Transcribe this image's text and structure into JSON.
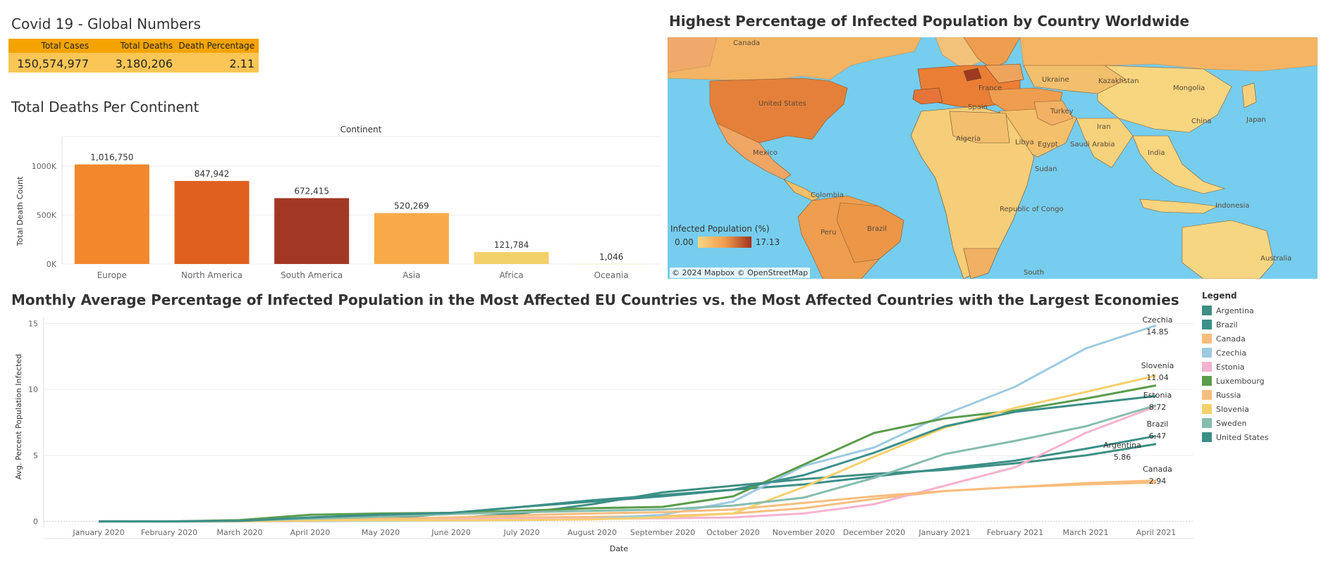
{
  "kpi": {
    "title": "Covid 19 - Global Numbers",
    "headers": [
      "Total Cases",
      "Total Deaths",
      "Death Percentage"
    ],
    "values": [
      "150,574,977",
      "3,180,206",
      "2.11"
    ],
    "colors": {
      "header": "#f5a300",
      "row": "#fcc656"
    }
  },
  "continent_chart": {
    "title": "Total Deaths Per Continent"
  },
  "map": {
    "title": "Highest Percentage of Infected Population by Country Worldwide",
    "legend_title": "Infected Population (%)",
    "legend_min": "0.00",
    "legend_max": "17.13",
    "attribution": "© 2024 Mapbox © OpenStreetMap",
    "labels": [
      "Canada",
      "United States",
      "Mexico",
      "Colombia",
      "Peru",
      "Brazil",
      "Kazakhstan",
      "Mongolia",
      "China",
      "Japan",
      "India",
      "Iran",
      "Saudi Arabia",
      "Egypt",
      "Libya",
      "Algeria",
      "Sudan",
      "Turkey",
      "Ukraine",
      "France",
      "Spain",
      "Republic of Congo",
      "South",
      "Indonesia",
      "Australia"
    ]
  },
  "line_chart": {
    "title": "Monthly Average Percentage of Infected Population in the Most Affected EU Countries vs. the Most Affected Countries with the Largest Economies",
    "legend_title": "Legend"
  },
  "chart_data": [
    {
      "type": "bar",
      "title": "Total Deaths Per Continent",
      "header": "Continent",
      "ylabel": "Total Death Count",
      "categories": [
        "Europe",
        "North America",
        "South America",
        "Asia",
        "Africa",
        "Oceania"
      ],
      "values": [
        1016750,
        847942,
        672415,
        520269,
        121784,
        1046
      ],
      "value_labels": [
        "1,016,750",
        "847,942",
        "672,415",
        "520,269",
        "121,784",
        "1,046"
      ],
      "colors": [
        "#f2872c",
        "#e0611f",
        "#a23823",
        "#f8aa4b",
        "#f2d06a",
        "#f8e9a8"
      ],
      "yticks": [
        0,
        500000,
        1000000
      ],
      "ytick_labels": [
        "0K",
        "500K",
        "1000K"
      ],
      "ylim": [
        0,
        1100000
      ],
      "grid": true
    },
    {
      "type": "line",
      "title": "Monthly Average Percentage of Infected Population in the Most Affected EU Countries vs. the Most Affected Countries with the Largest Economies",
      "xlabel": "Date",
      "ylabel": "Avg. Percent Population Infected",
      "categories": [
        "January 2020",
        "February 2020",
        "March 2020",
        "April 2020",
        "May 2020",
        "June 2020",
        "July 2020",
        "August 2020",
        "September 2020",
        "October 2020",
        "November 2020",
        "December 2020",
        "January 2021",
        "February 2021",
        "March 2021",
        "April 2021"
      ],
      "yticks": [
        0,
        5,
        10,
        15
      ],
      "ylim": [
        -0.5,
        15.5
      ],
      "legend_position": "right",
      "series": [
        {
          "name": "Argentina",
          "color": "#3f8f83",
          "values": [
            0,
            0,
            0.01,
            0.05,
            0.1,
            0.25,
            0.6,
            1.3,
            2.2,
            2.7,
            3.2,
            3.6,
            3.9,
            4.4,
            5.0,
            5.86
          ],
          "label": "Argentina",
          "value_label": "5.86"
        },
        {
          "name": "Brazil",
          "color": "#3b8f88",
          "values": [
            0,
            0,
            0.01,
            0.05,
            0.2,
            0.6,
            1.1,
            1.6,
            2.0,
            2.4,
            2.8,
            3.4,
            4.0,
            4.6,
            5.5,
            6.47
          ],
          "label": "Brazil",
          "value_label": "6.47"
        },
        {
          "name": "Canada",
          "color": "#f8bd7e",
          "values": [
            0,
            0,
            0.01,
            0.1,
            0.2,
            0.27,
            0.3,
            0.34,
            0.4,
            0.6,
            1.0,
            1.7,
            2.3,
            2.6,
            2.8,
            2.94
          ],
          "label": "Canada",
          "value_label": "2.94"
        },
        {
          "name": "Czechia",
          "color": "#9ecae1",
          "values": [
            0,
            0,
            0,
            0.02,
            0.04,
            0.06,
            0.1,
            0.2,
            0.5,
            1.5,
            4.2,
            5.6,
            8.1,
            10.2,
            13.1,
            14.85
          ],
          "label": "Czechia",
          "value_label": "14.85"
        },
        {
          "name": "Estonia",
          "color": "#f6b2cf",
          "values": [
            0,
            0,
            0.01,
            0.05,
            0.1,
            0.15,
            0.2,
            0.2,
            0.23,
            0.3,
            0.6,
            1.3,
            2.7,
            4.1,
            6.7,
            8.72
          ],
          "label": "Estonia",
          "value_label": "8.72"
        },
        {
          "name": "Luxembourg",
          "color": "#5a9c4c",
          "values": [
            0,
            0,
            0.1,
            0.5,
            0.6,
            0.65,
            0.8,
            1.0,
            1.1,
            1.9,
            4.3,
            6.7,
            7.8,
            8.4,
            9.3,
            10.3
          ],
          "label": "",
          "value_label": ""
        },
        {
          "name": "Russia",
          "color": "#f8bd7e",
          "values": [
            0,
            0,
            0.01,
            0.05,
            0.18,
            0.3,
            0.47,
            0.6,
            0.7,
            0.9,
            1.4,
            1.9,
            2.3,
            2.6,
            2.9,
            3.1
          ],
          "label": "",
          "value_label": ""
        },
        {
          "name": "Slovenia",
          "color": "#f5d06c",
          "values": [
            0,
            0,
            0.03,
            0.07,
            0.08,
            0.08,
            0.1,
            0.15,
            0.3,
            0.6,
            2.6,
            4.9,
            7.1,
            8.6,
            9.8,
            11.04
          ],
          "label": "Slovenia",
          "value_label": "11.04"
        },
        {
          "name": "Sweden",
          "color": "#86bcae",
          "values": [
            0,
            0,
            0.05,
            0.2,
            0.35,
            0.55,
            0.7,
            0.8,
            0.9,
            1.2,
            1.8,
            3.3,
            5.1,
            6.1,
            7.2,
            8.8
          ],
          "label": "",
          "value_label": ""
        },
        {
          "name": "United States",
          "color": "#3b8f88",
          "values": [
            0,
            0,
            0.04,
            0.3,
            0.5,
            0.65,
            1.1,
            1.5,
            1.9,
            2.4,
            3.5,
            5.2,
            7.2,
            8.3,
            8.9,
            9.5
          ],
          "label": "",
          "value_label": ""
        }
      ]
    }
  ]
}
